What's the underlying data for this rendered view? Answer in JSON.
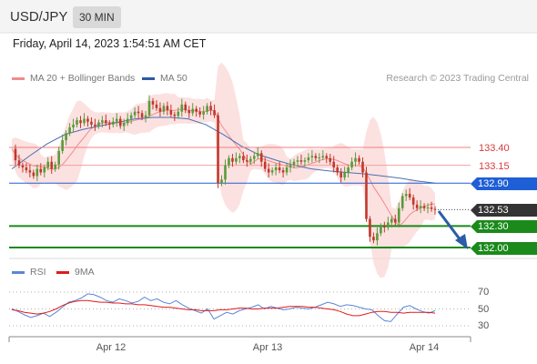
{
  "header": {
    "pair": "USD/JPY",
    "timeframe": "30 MIN"
  },
  "date": "Friday, April 14, 2023 1:54:51 AM CET",
  "legend": {
    "ma20": {
      "label": "MA 20 + Bollinger Bands",
      "color": "#f28b8b"
    },
    "ma50": {
      "label": "MA 50",
      "color": "#2c5aa0"
    }
  },
  "credit": "Research © 2023 Trading Central",
  "rsi_legend": {
    "rsi": {
      "label": "RSI",
      "color": "#5b86d6"
    },
    "ma": {
      "label": "9MA",
      "color": "#e01b1b"
    }
  },
  "levels": [
    {
      "value": "133.40",
      "style": "red-line"
    },
    {
      "value": "133.15",
      "style": "red-line"
    },
    {
      "value": "132.90",
      "style": "blue-tag",
      "color": "#1f5fd6"
    },
    {
      "value": "132.53",
      "style": "current",
      "color": "#333333"
    },
    {
      "value": "132.30",
      "style": "green-tag",
      "color": "#1a8a1a"
    },
    {
      "value": "132.00",
      "style": "green-tag",
      "color": "#1a8a1a"
    }
  ],
  "rsi_ticks": [
    "70",
    "50",
    "30"
  ],
  "x_labels": [
    "Apr 12",
    "Apr 13",
    "Apr 14"
  ],
  "chart_data": {
    "type": "candlestick",
    "instrument": "USD/JPY",
    "timeframe": "30 MIN",
    "y_unit": "price",
    "ylim": [
      131.93,
      134.3
    ],
    "levels": [
      133.4,
      133.15,
      132.9,
      132.53,
      132.3,
      132.0
    ],
    "current_price": 132.53,
    "forecast_direction": "down",
    "close_series": [
      133.38,
      133.22,
      133.15,
      133.12,
      133.08,
      133.05,
      133.0,
      133.1,
      133.05,
      133.12,
      133.2,
      133.1,
      133.16,
      133.35,
      133.5,
      133.6,
      133.68,
      133.72,
      133.78,
      133.74,
      133.8,
      133.76,
      133.72,
      133.7,
      133.75,
      133.78,
      133.74,
      133.72,
      133.76,
      133.8,
      133.7,
      133.74,
      133.8,
      133.85,
      133.9,
      133.88,
      133.82,
      133.85,
      134.05,
      134.0,
      133.95,
      133.9,
      133.98,
      133.92,
      133.86,
      133.84,
      133.9,
      134.0,
      133.92,
      133.88,
      133.94,
      133.9,
      133.86,
      133.9,
      133.98,
      133.92,
      133.85,
      132.9,
      132.95,
      133.15,
      133.25,
      133.2,
      133.25,
      133.28,
      133.22,
      133.2,
      133.24,
      133.28,
      133.32,
      133.2,
      133.1,
      133.05,
      133.08,
      133.12,
      133.08,
      133.05,
      133.12,
      133.15,
      133.2,
      133.22,
      133.2,
      133.22,
      133.26,
      133.28,
      133.25,
      133.26,
      133.28,
      133.25,
      133.2,
      133.12,
      133.05,
      132.98,
      133.05,
      133.12,
      133.2,
      133.25,
      133.2,
      133.05,
      132.4,
      132.15,
      132.1,
      132.2,
      132.3,
      132.28,
      132.35,
      132.4,
      132.35,
      132.55,
      132.72,
      132.75,
      132.7,
      132.6,
      132.55,
      132.58,
      132.55,
      132.56,
      132.54,
      132.53
    ],
    "ma50_series": [
      133.1,
      133.28,
      133.45,
      133.58,
      133.65,
      133.7,
      133.75,
      133.8,
      133.82,
      133.82,
      133.8,
      133.72,
      133.58,
      133.42,
      133.3,
      133.22,
      133.15,
      133.1,
      133.07,
      133.05,
      133.03,
      133.0,
      132.97,
      132.93,
      132.9
    ],
    "rsi": {
      "ylim": [
        20,
        80
      ],
      "ticks": [
        70,
        50,
        30
      ],
      "rsi_series": [
        50,
        47,
        43,
        40,
        42,
        45,
        41,
        46,
        52,
        58,
        60,
        63,
        68,
        67,
        64,
        60,
        58,
        62,
        60,
        57,
        59,
        64,
        60,
        62,
        58,
        56,
        60,
        55,
        51,
        48,
        45,
        50,
        38,
        42,
        46,
        44,
        48,
        50,
        52,
        55,
        50,
        53,
        51,
        49,
        50,
        52,
        51,
        50,
        52,
        55,
        58,
        56,
        53,
        55,
        54,
        52,
        50,
        49,
        42,
        36,
        35,
        44,
        52,
        54,
        50,
        47,
        45,
        48
      ],
      "ma_series": [
        49,
        48,
        46,
        45,
        44,
        45,
        47,
        50,
        54,
        57,
        59,
        60,
        60,
        59,
        58,
        58,
        57,
        57,
        56,
        56,
        55,
        55,
        54,
        53,
        52,
        52,
        51,
        50,
        49,
        49,
        48,
        48,
        48,
        49,
        49,
        50,
        51,
        51,
        50,
        50,
        51,
        51,
        51,
        52,
        53,
        53,
        53,
        52,
        52,
        51,
        50,
        49,
        47,
        44,
        42,
        42,
        44,
        46,
        47,
        47,
        46,
        46,
        45,
        46,
        46,
        46,
        46,
        45
      ]
    },
    "x_axis_labels": [
      "Apr 12",
      "Apr 13",
      "Apr 14"
    ],
    "grid": false
  }
}
